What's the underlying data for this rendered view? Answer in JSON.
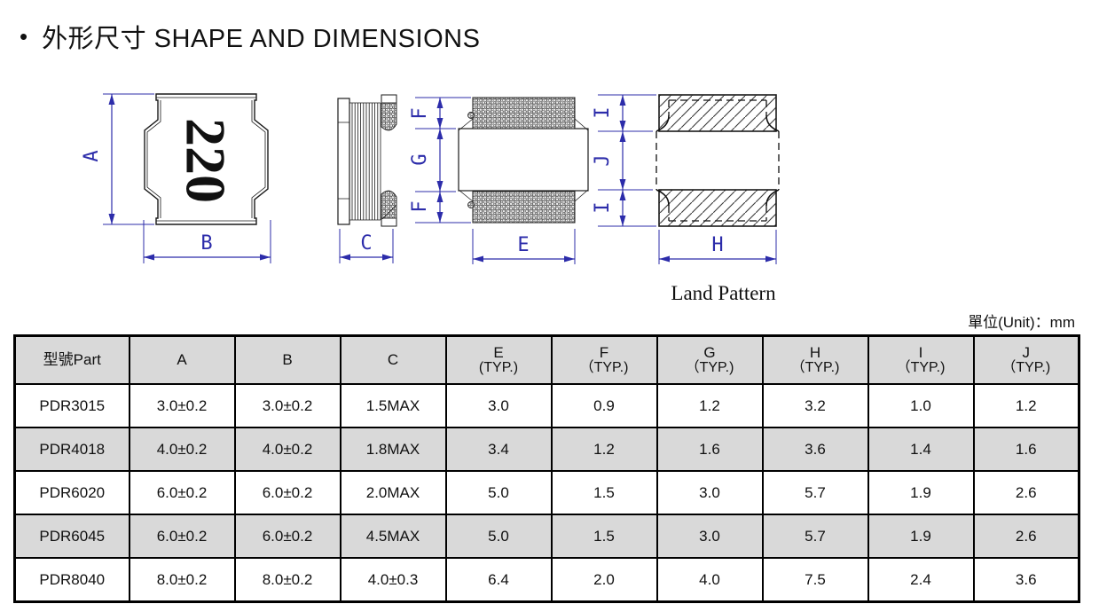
{
  "page": {
    "bullet": "•",
    "title": "外形尺寸 SHAPE AND DIMENSIONS",
    "land_pattern_label": "Land Pattern",
    "unit_label": "單位(Unit)：mm"
  },
  "drawing": {
    "marking": "220",
    "labels": {
      "A": "A",
      "B": "B",
      "C": "C",
      "E": "E",
      "F1": "F",
      "G": "G",
      "F2": "F",
      "H": "H",
      "I1": "I",
      "J": "J",
      "I2": "I"
    },
    "colors": {
      "dimension": "#2c2caa",
      "outline": "#1a1a1a"
    }
  },
  "table": {
    "row_keys": [
      "part",
      "a",
      "b",
      "c",
      "e",
      "f",
      "g",
      "h",
      "i",
      "j"
    ],
    "headers": [
      {
        "t": "型號Part",
        "s": ""
      },
      {
        "t": "A",
        "s": ""
      },
      {
        "t": "B",
        "s": ""
      },
      {
        "t": "C",
        "s": ""
      },
      {
        "t": "E",
        "s": "(TYP.)"
      },
      {
        "t": "F",
        "s": "（TYP.)"
      },
      {
        "t": "G",
        "s": "（TYP.)"
      },
      {
        "t": "H",
        "s": "（TYP.)"
      },
      {
        "t": "I",
        "s": "（TYP.)"
      },
      {
        "t": "J",
        "s": "（TYP.)"
      }
    ],
    "rows": [
      {
        "part": "PDR3015",
        "a": "3.0±0.2",
        "b": "3.0±0.2",
        "c": "1.5MAX",
        "e": "3.0",
        "f": "0.9",
        "g": "1.2",
        "h": "3.2",
        "i": "1.0",
        "j": "1.2"
      },
      {
        "part": "PDR4018",
        "a": "4.0±0.2",
        "b": "4.0±0.2",
        "c": "1.8MAX",
        "e": "3.4",
        "f": "1.2",
        "g": "1.6",
        "h": "3.6",
        "i": "1.4",
        "j": "1.6"
      },
      {
        "part": "PDR6020",
        "a": "6.0±0.2",
        "b": "6.0±0.2",
        "c": "2.0MAX",
        "e": "5.0",
        "f": "1.5",
        "g": "3.0",
        "h": "5.7",
        "i": "1.9",
        "j": "2.6"
      },
      {
        "part": "PDR6045",
        "a": "6.0±0.2",
        "b": "6.0±0.2",
        "c": "4.5MAX",
        "e": "5.0",
        "f": "1.5",
        "g": "3.0",
        "h": "5.7",
        "i": "1.9",
        "j": "2.6"
      },
      {
        "part": "PDR8040",
        "a": "8.0±0.2",
        "b": "8.0±0.2",
        "c": "4.0±0.3",
        "e": "6.4",
        "f": "2.0",
        "g": "4.0",
        "h": "7.5",
        "i": "2.4",
        "j": "3.6"
      }
    ],
    "styles": {
      "header_bg": "#d9d9d9",
      "alt_row_bg": "#d9d9d9",
      "border": "#000000"
    }
  }
}
